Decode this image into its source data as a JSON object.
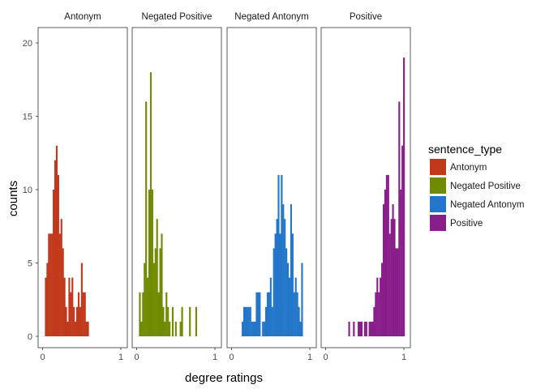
{
  "chart_data": {
    "type": "histogram",
    "xlabel": "degree ratings",
    "ylabel": "counts",
    "xlim": [
      0,
      1
    ],
    "ylim": [
      0,
      20
    ],
    "x_ticks": [
      "0",
      "1"
    ],
    "y_ticks": [
      "0",
      "5",
      "10",
      "15",
      "20"
    ],
    "bin_width": 0.02,
    "legend": {
      "title": "sentence_type",
      "position": "right",
      "entries": [
        "Antonym",
        "Negated Positive",
        "Negated Antonym",
        "Positive"
      ]
    },
    "panels": [
      {
        "name": "Antonym",
        "color": "#C1381B",
        "bin_centers": [
          0.04,
          0.06,
          0.08,
          0.1,
          0.12,
          0.14,
          0.16,
          0.18,
          0.2,
          0.22,
          0.24,
          0.26,
          0.28,
          0.3,
          0.32,
          0.34,
          0.36,
          0.38,
          0.4,
          0.42,
          0.44,
          0.46,
          0.48,
          0.5,
          0.52,
          0.54,
          0.56,
          0.58
        ],
        "counts": [
          4,
          5,
          7,
          7,
          7,
          10,
          12,
          13,
          11,
          7,
          8,
          6,
          4,
          2,
          1,
          4,
          3,
          4,
          2,
          1,
          2,
          3,
          2,
          5,
          3,
          3,
          1,
          1
        ]
      },
      {
        "name": "Negated Positive",
        "color": "#718B00",
        "bin_centers": [
          0.04,
          0.06,
          0.08,
          0.1,
          0.12,
          0.14,
          0.16,
          0.18,
          0.2,
          0.22,
          0.24,
          0.26,
          0.28,
          0.3,
          0.32,
          0.34,
          0.36,
          0.38,
          0.4,
          0.42,
          0.44,
          0.46,
          0.48,
          0.5,
          0.52,
          0.54,
          0.56,
          0.58,
          0.6,
          0.62,
          0.64,
          0.66,
          0.68,
          0.7,
          0.72,
          0.74,
          0.76
        ],
        "counts": [
          3,
          1,
          3,
          5,
          16,
          4,
          10,
          18,
          10,
          5,
          6,
          8,
          3,
          6,
          7,
          2,
          1,
          3,
          2,
          1,
          0,
          2,
          0,
          1,
          0,
          0,
          1,
          2,
          0,
          0,
          0,
          0,
          2,
          0,
          0,
          0,
          2
        ]
      },
      {
        "name": "Negated Antonym",
        "color": "#2376C9",
        "bin_centers": [
          0.14,
          0.16,
          0.18,
          0.2,
          0.22,
          0.24,
          0.26,
          0.28,
          0.3,
          0.32,
          0.34,
          0.36,
          0.38,
          0.4,
          0.42,
          0.44,
          0.46,
          0.48,
          0.5,
          0.52,
          0.54,
          0.56,
          0.58,
          0.6,
          0.62,
          0.64,
          0.66,
          0.68,
          0.7,
          0.72,
          0.74,
          0.76,
          0.78,
          0.8,
          0.82,
          0.84,
          0.86,
          0.88,
          0.9,
          0.92,
          0.94
        ],
        "counts": [
          1,
          2,
          2,
          2,
          2,
          2,
          1,
          1,
          1,
          3,
          3,
          3,
          0,
          1,
          1,
          2,
          3,
          3,
          4,
          2,
          6,
          7,
          8,
          11,
          7,
          11,
          9,
          8,
          6,
          5,
          4,
          9,
          7,
          3,
          4,
          3,
          2,
          1,
          5,
          0,
          0
        ]
      },
      {
        "name": "Positive",
        "color": "#891E8B",
        "bin_centers": [
          0.3,
          0.32,
          0.34,
          0.36,
          0.38,
          0.4,
          0.42,
          0.44,
          0.46,
          0.48,
          0.5,
          0.52,
          0.54,
          0.56,
          0.58,
          0.6,
          0.62,
          0.64,
          0.66,
          0.68,
          0.7,
          0.72,
          0.74,
          0.76,
          0.78,
          0.8,
          0.82,
          0.84,
          0.86,
          0.88,
          0.9,
          0.92,
          0.94,
          0.96,
          0.98,
          1.0
        ],
        "counts": [
          1,
          0,
          0,
          1,
          0,
          0,
          1,
          1,
          1,
          0,
          1,
          1,
          0,
          1,
          1,
          1,
          2,
          3,
          4,
          3,
          4,
          5,
          9,
          10,
          11,
          11,
          7,
          8,
          9,
          8,
          6,
          6,
          16,
          10,
          13,
          19
        ]
      }
    ]
  }
}
